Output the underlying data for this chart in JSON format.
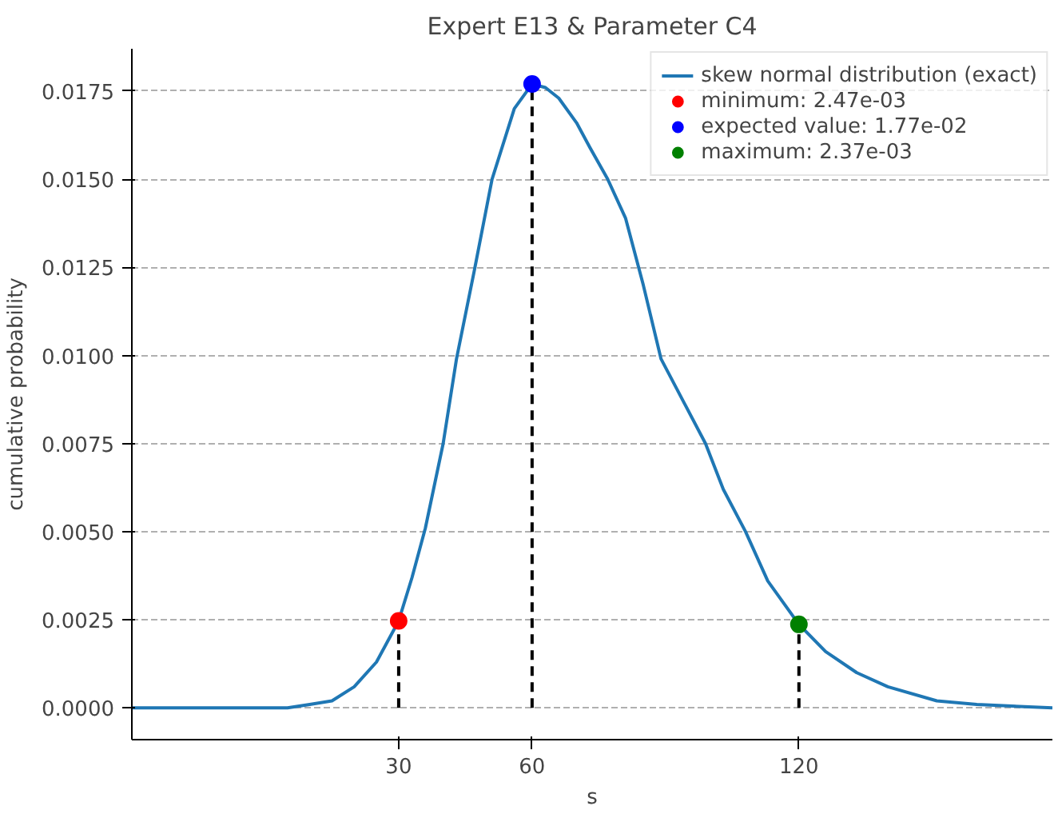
{
  "chart_data": {
    "type": "line",
    "title": "Expert E13 & Parameter C4",
    "xlabel": "s",
    "ylabel": "cumulative probability",
    "xlim": [
      -30,
      177
    ],
    "xticks": [
      30,
      60,
      120
    ],
    "ylim": [
      -0.0009,
      0.0187
    ],
    "yticks": [
      {
        "value": 0,
        "label": "0.0000"
      },
      0.0025,
      {
        "value": 0.005,
        "label": "0.0050"
      },
      0.0075,
      {
        "value": 0.01,
        "label": "0.0100"
      },
      0.0125,
      {
        "value": 0.015,
        "label": "0.0150"
      },
      0.0175
    ],
    "grid": "y",
    "legend": "top right",
    "series": [
      {
        "name": "skew normal distribution (exact)",
        "color": "#1f77b4",
        "x": [
          -30,
          -1,
          5,
          10,
          15,
          20,
          25,
          30,
          33,
          36,
          40,
          43,
          47,
          51,
          56,
          60,
          63,
          66,
          70,
          73,
          77,
          81,
          85,
          89,
          94,
          99,
          103,
          108,
          113,
          120,
          126,
          133,
          140,
          151,
          160,
          177
        ],
        "values": [
          0,
          0,
          0,
          0.0001,
          0.0002,
          0.0006,
          0.0013,
          0.00247,
          0.0037,
          0.0051,
          0.0075,
          0.0099,
          0.0124,
          0.015,
          0.017,
          0.0177,
          0.0176,
          0.0173,
          0.0166,
          0.0159,
          0.015,
          0.0139,
          0.012,
          0.0099,
          0.0087,
          0.0075,
          0.0062,
          0.005,
          0.0036,
          0.00237,
          0.0016,
          0.001,
          0.0006,
          0.0002,
          0.0001,
          0
        ]
      },
      {
        "name": "minimum: 2.47e-03",
        "type": "lollipop",
        "color": "#ff0000",
        "x": [
          30
        ],
        "values": [
          0.00247
        ],
        "line_style": "dashed"
      },
      {
        "name": "expected value: 1.77e-02",
        "type": "lollipop",
        "color": "#0000ff",
        "x": [
          60
        ],
        "values": [
          0.0177
        ],
        "line_style": "dashed"
      },
      {
        "name": "maximum: 2.37e-03",
        "type": "lollipop",
        "color": "#008000",
        "x": [
          120
        ],
        "values": [
          0.00237
        ],
        "line_style": "dashed"
      }
    ]
  }
}
